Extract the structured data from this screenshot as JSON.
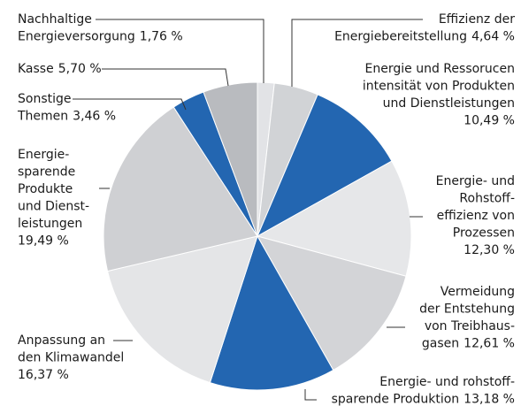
{
  "chart_data": {
    "type": "pie",
    "categories": [
      "Nachhaltige\nEnergieversorgung",
      "Effizienz der\nEnergiebereitstellung",
      "Energie und Ressorucen\nintensität von Produkten\nund Dienstleistungen",
      "Rohstoff-\nRohstoff-\neffizienz von\nProzessen",
      "Vermeidung\nder Entstehung\nvon Treibhaus-\ngasen",
      "Energie- und rohstoff-\nsparende Produktion",
      "Anpassung an\nden Klimawandel",
      "Energie-\nsparende\nProdukte\nund Dienst-\nleistungen",
      "Sonstige\nThemen",
      "Kasse"
    ],
    "values": [
      1.76,
      4.64,
      10.49,
      12.3,
      12.61,
      13.18,
      16.37,
      19.49,
      3.46,
      5.7
    ],
    "value_labels": [
      "1,76 %",
      "4,64 %",
      "10,49 %",
      "12,30 %",
      "12,61 %",
      "13,18 %",
      "16,37 %",
      "19,49 %",
      "3,46 %",
      "5,70 %"
    ],
    "colors": [
      "#e2e3e6",
      "#d1d3d6",
      "#2366b1",
      "#e6e7e9",
      "#d3d4d7",
      "#2366b1",
      "#e4e5e7",
      "#cfd0d3",
      "#2366b1",
      "#b9bbbf"
    ]
  }
}
